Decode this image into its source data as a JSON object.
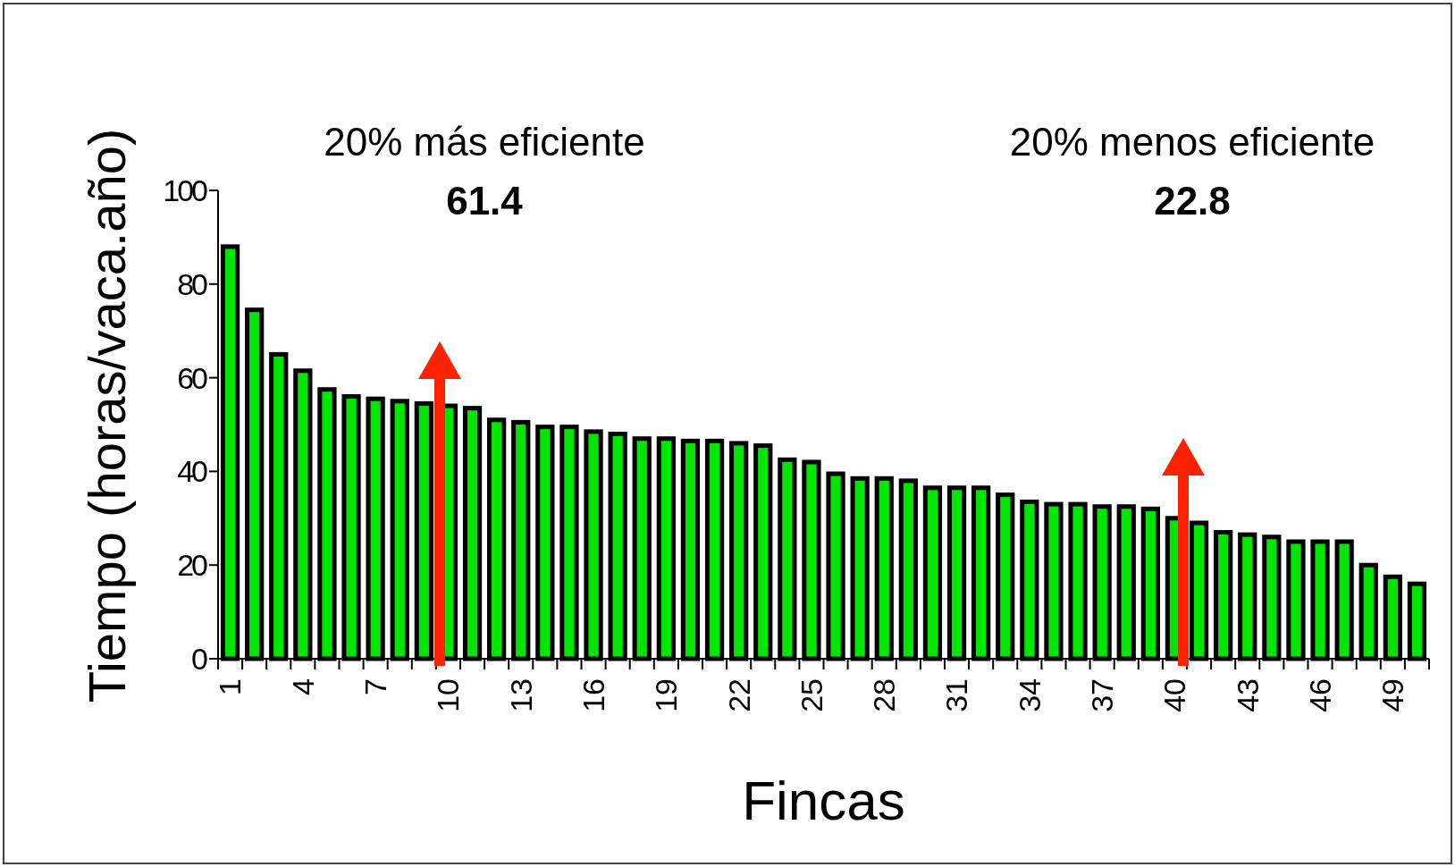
{
  "chart_data": {
    "type": "bar",
    "xlabel": "Fincas",
    "ylabel": "Tiempo (horas/vaca.año)",
    "categories": [
      "1",
      null,
      null,
      "4",
      null,
      null,
      "7",
      null,
      null,
      "10",
      null,
      null,
      "13",
      null,
      null,
      "16",
      null,
      null,
      "19",
      null,
      null,
      "22",
      null,
      null,
      "25",
      null,
      null,
      "28",
      null,
      null,
      "31",
      null,
      null,
      "34",
      null,
      null,
      "37",
      null,
      null,
      "40",
      null,
      null,
      "43",
      null,
      null,
      "46",
      null,
      null,
      "49",
      null
    ],
    "values": [
      88,
      74.5,
      65,
      61.5,
      57.5,
      56,
      55.5,
      55,
      54.5,
      54,
      53.5,
      51,
      50.5,
      49.5,
      49.5,
      48.5,
      48,
      47,
      47,
      46.5,
      46.5,
      46,
      45.5,
      42.5,
      42,
      39.5,
      38.5,
      38.5,
      38,
      36.5,
      36.5,
      36.5,
      35,
      33.5,
      33,
      33,
      32.5,
      32.5,
      32,
      30,
      29,
      27,
      26.5,
      26,
      25,
      25,
      25,
      20,
      17.5,
      16
    ],
    "color": "#00e600",
    "ylim": [
      0,
      100
    ],
    "yticks": [
      0,
      20,
      40,
      60,
      80,
      100
    ],
    "grid": false,
    "annotations": [
      "20% más eficiente",
      "61.4",
      "20% menos eficiente",
      "22.8"
    ]
  }
}
